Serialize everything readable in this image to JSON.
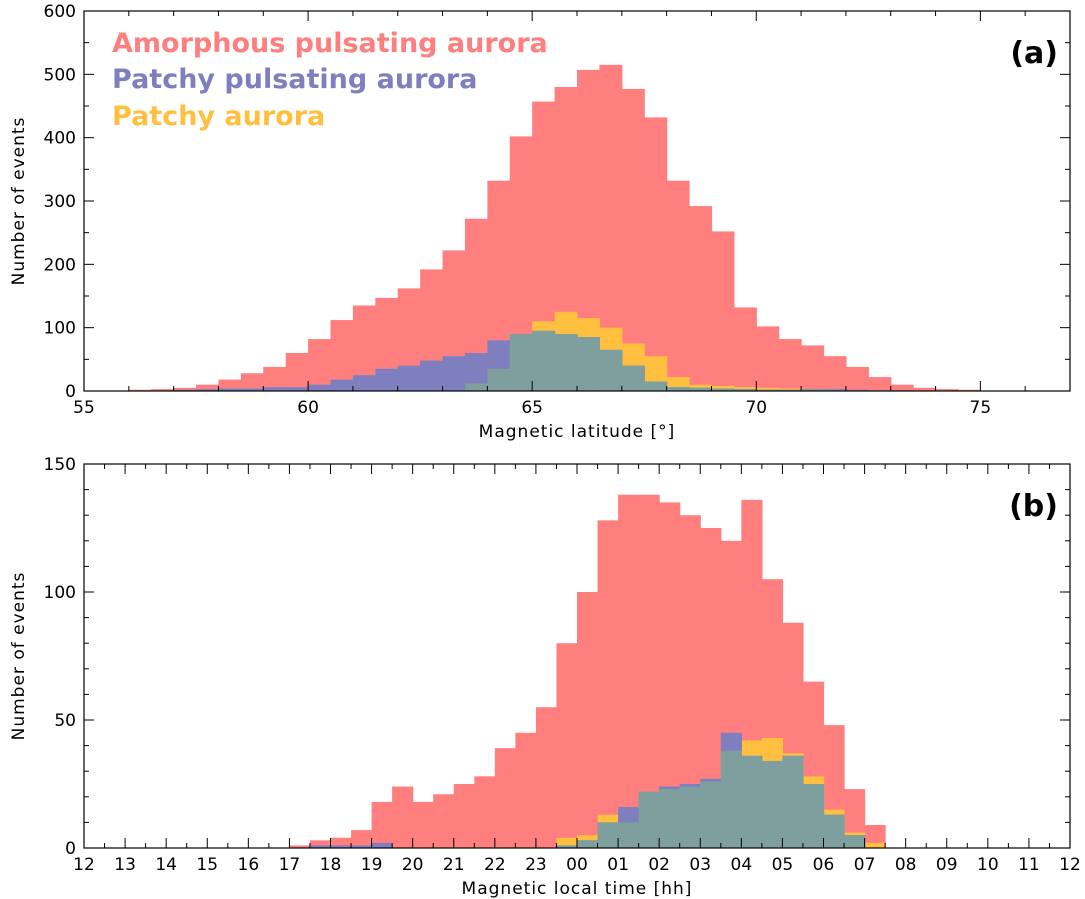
{
  "figure": {
    "legend": [
      {
        "label": "Amorphous pulsating aurora",
        "color": "#ff7f7f"
      },
      {
        "label": "Patchy pulsating aurora",
        "color": "#7f7fbf"
      },
      {
        "label": "Patchy aurora",
        "color": "#ffbf3f"
      }
    ],
    "overlap_colors": {
      "patchy_pulsating_over_patchy": "#7f9f9f",
      "patchy_over_amorphous": "#ffbf3f"
    }
  },
  "chart_data": [
    {
      "id": "a",
      "type": "bar",
      "panel_label": "(a)",
      "xlabel": "Magnetic latitude [°]",
      "ylabel": "Number of events",
      "xlim": [
        55,
        77
      ],
      "ylim": [
        0,
        600
      ],
      "x_ticks": [
        55,
        60,
        65,
        70,
        75
      ],
      "y_ticks": [
        0,
        100,
        200,
        300,
        400,
        500,
        600
      ],
      "x_tick_labels": [
        "55",
        "60",
        "65",
        "70",
        "75"
      ],
      "y_tick_labels": [
        "0",
        "100",
        "200",
        "300",
        "400",
        "500",
        "600"
      ],
      "bin_start": 56,
      "bin_width": 0.5,
      "grid": false,
      "legend_position": "top-left",
      "series": [
        {
          "name": "Amorphous pulsating aurora",
          "color": "#ff7f7f",
          "values": [
            2,
            3,
            5,
            10,
            18,
            28,
            38,
            60,
            82,
            112,
            135,
            147,
            162,
            192,
            222,
            272,
            332,
            402,
            457,
            480,
            507,
            515,
            477,
            432,
            332,
            292,
            252,
            132,
            102,
            82,
            72,
            55,
            38,
            22,
            10,
            5,
            3,
            2,
            0,
            0
          ]
        },
        {
          "name": "Patchy pulsating aurora",
          "color": "#7f7fbf",
          "values": [
            0,
            0,
            2,
            3,
            4,
            4,
            6,
            6,
            10,
            18,
            25,
            35,
            40,
            48,
            55,
            60,
            80,
            90,
            95,
            90,
            85,
            65,
            40,
            15,
            6,
            5,
            4,
            3,
            2,
            2,
            3,
            3,
            2,
            1,
            1,
            0,
            0,
            0,
            0,
            0
          ]
        },
        {
          "name": "Patchy aurora",
          "color": "#ffbf3f",
          "values": [
            0,
            0,
            0,
            0,
            0,
            0,
            0,
            0,
            0,
            0,
            0,
            0,
            0,
            0,
            0,
            12,
            35,
            90,
            110,
            125,
            115,
            100,
            75,
            55,
            22,
            10,
            8,
            6,
            5,
            4,
            3,
            2,
            1,
            1,
            0,
            0,
            0,
            0,
            0,
            0
          ]
        }
      ]
    },
    {
      "id": "b",
      "type": "bar",
      "panel_label": "(b)",
      "xlabel": "Magnetic local time [hh]",
      "ylabel": "Number of events",
      "xlim": [
        12,
        36
      ],
      "ylim": [
        0,
        150
      ],
      "x_ticks": [
        12,
        13,
        14,
        15,
        16,
        17,
        18,
        19,
        20,
        21,
        22,
        23,
        24,
        25,
        26,
        27,
        28,
        29,
        30,
        31,
        32,
        33,
        34,
        35,
        36
      ],
      "y_ticks": [
        0,
        50,
        100,
        150
      ],
      "x_tick_labels": [
        "12",
        "13",
        "14",
        "15",
        "16",
        "17",
        "18",
        "19",
        "20",
        "21",
        "22",
        "23",
        "00",
        "01",
        "02",
        "03",
        "04",
        "05",
        "06",
        "07",
        "08",
        "09",
        "10",
        "11",
        "12"
      ],
      "y_tick_labels": [
        "0",
        "50",
        "100",
        "150"
      ],
      "bin_start": 17,
      "bin_width": 0.5,
      "grid": false,
      "series": [
        {
          "name": "Amorphous pulsating aurora",
          "color": "#ff7f7f",
          "values": [
            1,
            3,
            4,
            7,
            18,
            24,
            18,
            21,
            25,
            28,
            39,
            45,
            55,
            80,
            100,
            128,
            138,
            138,
            135,
            130,
            125,
            120,
            136,
            105,
            88,
            65,
            48,
            23,
            9
          ]
        },
        {
          "name": "Patchy pulsating aurora",
          "color": "#7f7fbf",
          "values": [
            0,
            1,
            1,
            1,
            2,
            0,
            0,
            0,
            0,
            0,
            0,
            0,
            0,
            1,
            3,
            10,
            16,
            22,
            24,
            25,
            27,
            45,
            36,
            34,
            36,
            25,
            13,
            5,
            0
          ]
        },
        {
          "name": "Patchy aurora",
          "color": "#ffbf3f",
          "values": [
            0,
            0,
            0,
            0,
            0,
            0,
            0,
            0,
            0,
            0,
            0,
            0,
            0,
            4,
            5,
            13,
            10,
            22,
            23,
            24,
            26,
            38,
            42,
            43,
            37,
            28,
            15,
            6,
            2
          ]
        }
      ]
    }
  ]
}
